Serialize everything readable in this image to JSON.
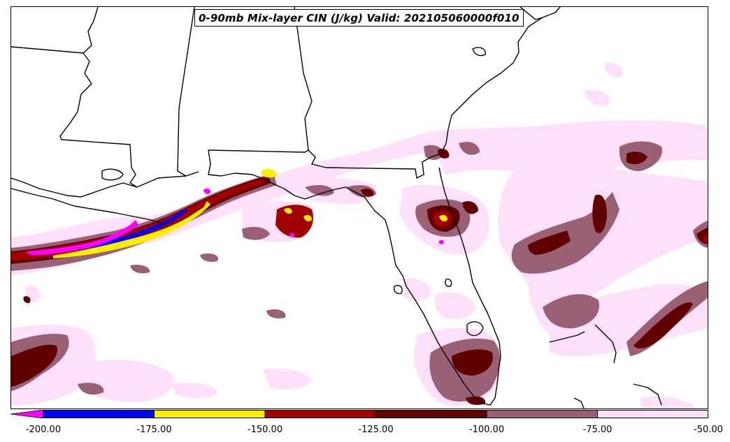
{
  "title": "0-90mb Mix-layer CIN (J/kg) Valid: 202105060000f010",
  "colorbar": {
    "tick_labels": [
      "-200.00",
      "-175.00",
      "-150.00",
      "-125.00",
      "-100.00",
      "-75.00",
      "-50.00"
    ],
    "bins": [
      {
        "range": [
          -225,
          -200
        ],
        "color": "#ff00ff"
      },
      {
        "range": [
          -200,
          -175
        ],
        "color": "#0000ff"
      },
      {
        "range": [
          -175,
          -150
        ],
        "color": "#ffee00"
      },
      {
        "range": [
          -150,
          -125
        ],
        "color": "#a00000"
      },
      {
        "range": [
          -125,
          -100
        ],
        "color": "#600000"
      },
      {
        "range": [
          -100,
          -75
        ],
        "color": "#9a6076"
      },
      {
        "range": [
          -75,
          -50
        ],
        "color": "#ffe0fa"
      }
    ]
  },
  "colors": {
    "magenta": "#ff00ff",
    "blue": "#0000ff",
    "yellow": "#ffee00",
    "red": "#a00000",
    "dark_red": "#600000",
    "mauve": "#9a6076",
    "light_pink": "#ffe0fa"
  }
}
